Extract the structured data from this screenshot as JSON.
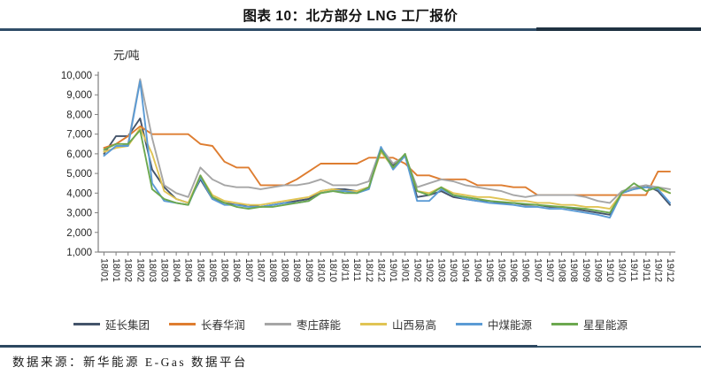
{
  "page": {
    "title": "图表 10：北方部分 LNG 工厂报价",
    "source": "数据来源：新华能源 E-Gas 数据平台"
  },
  "colors": {
    "axis": "#7F7F7F",
    "tick_text": "#262626",
    "rule_top_left": "#2F4D68",
    "rule_top_right": "#203242",
    "rule_bottom_left": "#2C4860",
    "rule_bottom_right": "#35566B"
  },
  "chart_data": {
    "type": "line",
    "title": "北方部分 LNG 工厂报价",
    "unit_label": "元/吨",
    "xlabel": "",
    "ylabel": "元/吨",
    "ylim": [
      1000,
      10000
    ],
    "grid": false,
    "legend_position": "bottom",
    "x_label_rotation": 90,
    "y_tick_values": [
      10000,
      9000,
      8000,
      7000,
      6000,
      5000,
      4000,
      3000,
      2000,
      1000
    ],
    "y_ticks": [
      "10,000",
      "9,000",
      "8,000",
      "7,000",
      "6,000",
      "5,000",
      "4,000",
      "3,000",
      "2,000",
      "1,000"
    ],
    "categories": [
      "18/01",
      "18/01",
      "18/02",
      "18/02",
      "18/03",
      "18/03",
      "18/04",
      "18/04",
      "18/05",
      "18/05",
      "18/06",
      "18/06",
      "18/07",
      "18/07",
      "18/08",
      "18/08",
      "18/09",
      "18/09",
      "18/10",
      "18/10",
      "18/11",
      "18/11",
      "18/12",
      "18/12",
      "19/01",
      "19/01",
      "19/02",
      "19/02",
      "19/03",
      "19/03",
      "19/04",
      "19/04",
      "19/05",
      "19/05",
      "19/06",
      "19/06",
      "19/07",
      "19/07",
      "19/08",
      "19/08",
      "19/09",
      "19/09",
      "19/10",
      "19/10",
      "19/11",
      "19/11",
      "19/12",
      "19/12"
    ],
    "series": [
      {
        "name": "延长集团",
        "color": "#44546A",
        "values": [
          6000,
          6900,
          6900,
          7800,
          5200,
          4300,
          3700,
          3500,
          4700,
          3700,
          3500,
          3400,
          3400,
          3300,
          3400,
          3500,
          3600,
          3700,
          4100,
          4200,
          4200,
          4100,
          4300,
          6200,
          5400,
          5900,
          3800,
          3900,
          4100,
          3800,
          3700,
          3600,
          3600,
          3500,
          3500,
          3400,
          3400,
          3300,
          3300,
          3200,
          3100,
          3000,
          2900,
          4000,
          4200,
          4400,
          4100,
          3400
        ]
      },
      {
        "name": "长春华润",
        "color": "#DE7D30",
        "values": [
          6300,
          6500,
          6900,
          7400,
          7000,
          7000,
          7000,
          7000,
          6500,
          6400,
          5600,
          5300,
          5300,
          4400,
          4400,
          4400,
          4700,
          5100,
          5500,
          5500,
          5500,
          5500,
          5800,
          5800,
          5800,
          5500,
          4900,
          4900,
          4700,
          4700,
          4700,
          4400,
          4400,
          4400,
          4300,
          4300,
          3900,
          3900,
          3900,
          3900,
          3900,
          3900,
          3900,
          3900,
          3900,
          3900,
          5100,
          5100
        ]
      },
      {
        "name": "枣庄薛能",
        "color": "#A6A6A6",
        "values": [
          6100,
          6300,
          6500,
          9800,
          6800,
          4400,
          4000,
          3800,
          5300,
          4700,
          4400,
          4300,
          4300,
          4200,
          4300,
          4400,
          4400,
          4500,
          4700,
          4400,
          4400,
          4400,
          4600,
          6300,
          5500,
          5900,
          4300,
          4500,
          4700,
          4600,
          4400,
          4300,
          4200,
          4100,
          3900,
          3800,
          3900,
          3900,
          3900,
          3900,
          3800,
          3600,
          3500,
          4100,
          4300,
          4400,
          4300,
          4200
        ]
      },
      {
        "name": "山西易高",
        "color": "#E0C454",
        "values": [
          6100,
          6300,
          6400,
          7300,
          6000,
          4100,
          3700,
          3500,
          4900,
          3900,
          3600,
          3500,
          3400,
          3400,
          3500,
          3600,
          3700,
          3800,
          4100,
          4200,
          4100,
          4100,
          4300,
          6100,
          5300,
          5900,
          4100,
          4000,
          4300,
          4000,
          3900,
          3800,
          3800,
          3700,
          3600,
          3600,
          3500,
          3500,
          3400,
          3400,
          3300,
          3300,
          3200,
          4000,
          4200,
          4300,
          4200,
          4000
        ]
      },
      {
        "name": "中煤能源",
        "color": "#5B9BD5",
        "values": [
          5900,
          6400,
          6400,
          9700,
          4500,
          3600,
          3500,
          3400,
          4800,
          3700,
          3400,
          3400,
          3300,
          3300,
          3400,
          3500,
          3500,
          3600,
          4000,
          4100,
          4100,
          4000,
          4200,
          6350,
          5200,
          5900,
          3600,
          3600,
          4200,
          3900,
          3700,
          3600,
          3500,
          3450,
          3400,
          3300,
          3300,
          3200,
          3200,
          3100,
          3000,
          2900,
          2750,
          4000,
          4200,
          4300,
          4200,
          3500
        ]
      },
      {
        "name": "星星能源",
        "color": "#6CA84F",
        "values": [
          6200,
          6500,
          6500,
          7200,
          4200,
          3700,
          3500,
          3400,
          4900,
          3800,
          3500,
          3300,
          3200,
          3300,
          3300,
          3400,
          3500,
          3600,
          4000,
          4100,
          4000,
          4000,
          4300,
          6200,
          5300,
          6000,
          4100,
          3900,
          4300,
          3900,
          3800,
          3700,
          3600,
          3550,
          3500,
          3450,
          3400,
          3350,
          3300,
          3250,
          3200,
          3100,
          3000,
          4000,
          4500,
          4100,
          4300,
          4000
        ]
      }
    ]
  }
}
